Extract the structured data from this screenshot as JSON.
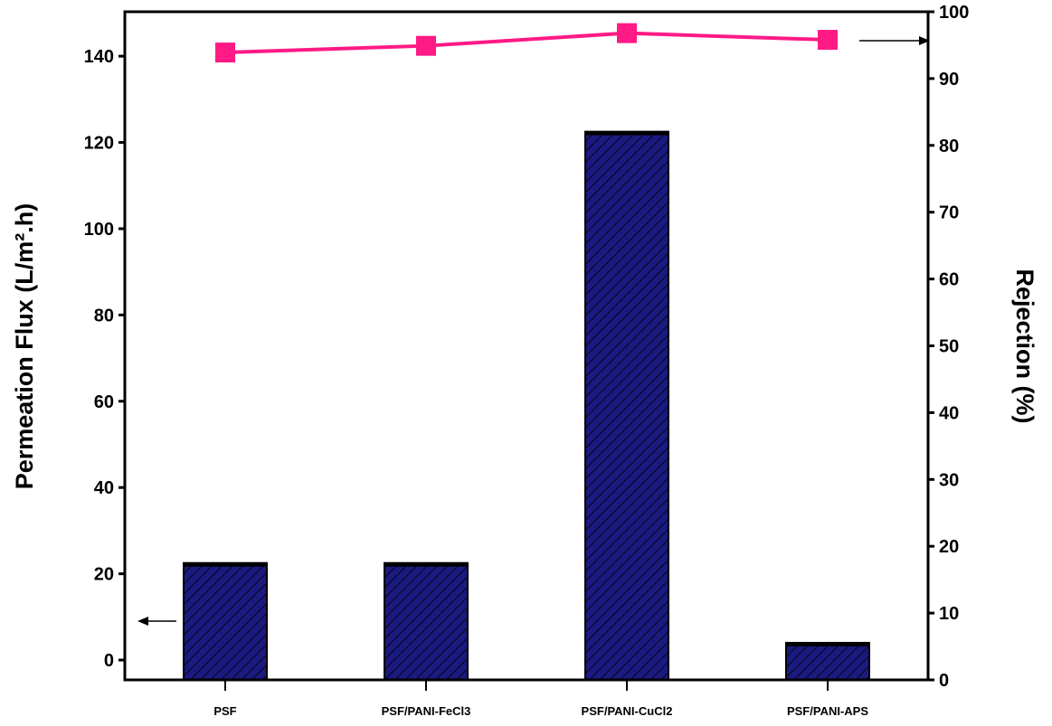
{
  "chart_data": {
    "type": "bar",
    "categories": [
      "PSF",
      "PSF/PANI-FeCl3",
      "PSF/PANI-CuCl2",
      "PSF/PANI-APS"
    ],
    "series": [
      {
        "axis": "left",
        "kind": "bar",
        "values": [
          22.5,
          22.5,
          122.5,
          4
        ],
        "color": "#1a1a80"
      },
      {
        "axis": "right",
        "kind": "line",
        "values": [
          93.9,
          94.9,
          96.8,
          95.8
        ],
        "color": "#ff1a85"
      }
    ],
    "ylabel_left": "Permeation Flux (L/m².h)",
    "ylabel_right": "Rejection (%)",
    "xlabel": "",
    "ylim_left": [
      -4.6,
      150.3
    ],
    "ylim_right": [
      0,
      100
    ],
    "yticks_left": [
      "0",
      "20",
      "40",
      "60",
      "80",
      "100",
      "120",
      "140"
    ],
    "yticks_right": [
      "0",
      "10",
      "20",
      "30",
      "40",
      "50",
      "60",
      "70",
      "80",
      "90",
      "100"
    ],
    "grid": false,
    "annotations": [
      "arrow pointing left near bars (flux → left axis)",
      "arrow pointing right near line (rejection → right axis)"
    ]
  }
}
